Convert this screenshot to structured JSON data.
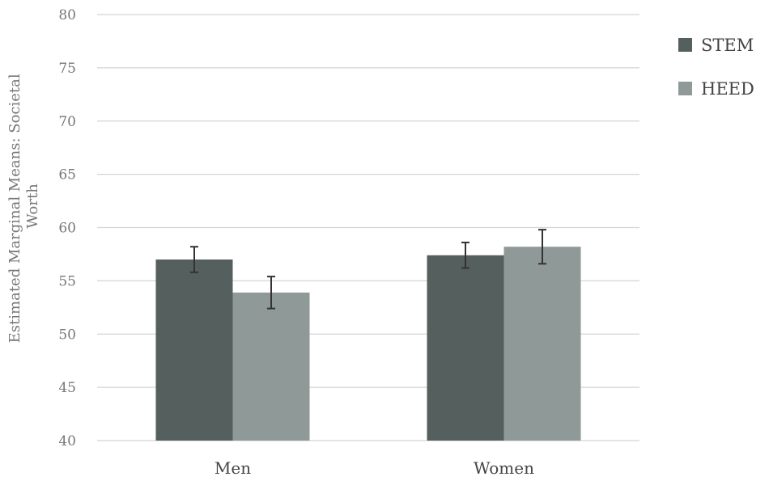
{
  "chart_data": {
    "type": "bar",
    "title": "",
    "xlabel": "",
    "ylabel_lines": [
      "Estimated Marginal Means: Societal",
      "Worth"
    ],
    "ylim": [
      40,
      80
    ],
    "yticks": [
      "40",
      "45",
      "50",
      "55",
      "60",
      "65",
      "70",
      "75",
      "80"
    ],
    "grid": true,
    "legend_position": "right",
    "categories": [
      "Men",
      "Women"
    ],
    "series": [
      {
        "name": "STEM",
        "color": "#555f5d",
        "values": [
          57.0,
          57.4
        ],
        "error": [
          1.2,
          1.2
        ]
      },
      {
        "name": "HEED",
        "color": "#8f9997",
        "values": [
          53.9,
          58.2
        ],
        "error": [
          1.5,
          1.6
        ]
      }
    ]
  }
}
